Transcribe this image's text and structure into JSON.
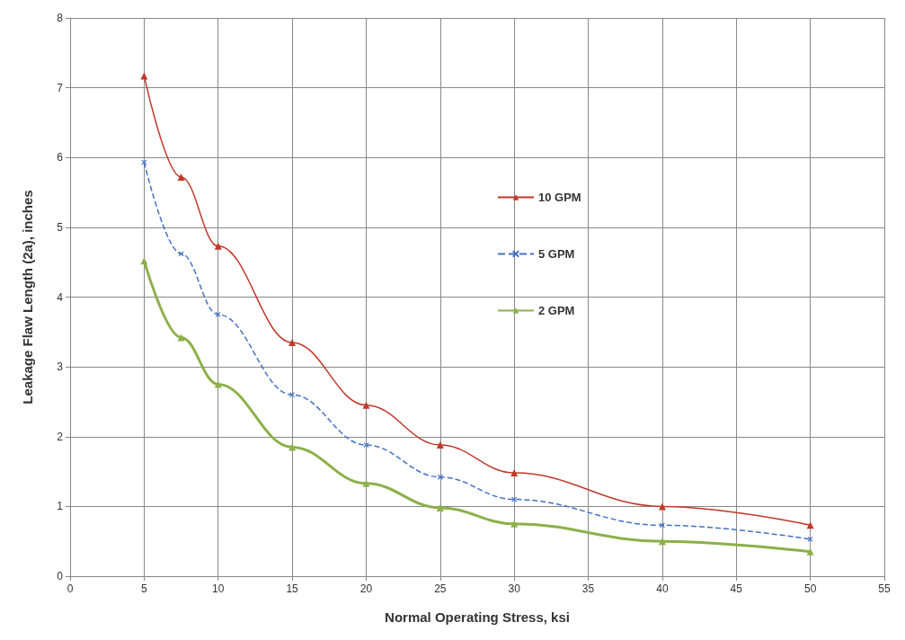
{
  "chart_data": {
    "type": "line",
    "xlabel": "Normal Operating Stress, ksi",
    "ylabel": "Leakage Flaw Length (2a), inches",
    "x": [
      5,
      7.5,
      10,
      15,
      20,
      25,
      30,
      40,
      50
    ],
    "series": [
      {
        "name": "10 GPM",
        "color": "#c0392b",
        "marker": "triangle",
        "line_style": "solid",
        "values": [
          7.17,
          5.72,
          4.73,
          3.35,
          2.45,
          1.88,
          1.48,
          1.0,
          0.73
        ]
      },
      {
        "name": "5 GPM",
        "color": "#4472c4",
        "marker": "cross",
        "line_style": "dashed",
        "values": [
          5.93,
          4.62,
          3.75,
          2.6,
          1.88,
          1.42,
          1.1,
          0.73,
          0.53
        ]
      },
      {
        "name": "2 GPM",
        "color": "#8db04a",
        "marker": "triangle",
        "line_style": "solid",
        "values": [
          4.52,
          3.42,
          2.75,
          1.85,
          1.33,
          0.98,
          0.75,
          0.5,
          0.35
        ]
      }
    ],
    "xlim": [
      0,
      55
    ],
    "xticks": [
      0,
      5,
      10,
      15,
      20,
      25,
      30,
      35,
      40,
      45,
      50,
      55
    ],
    "ylim": [
      0,
      8
    ],
    "yticks": [
      0,
      1,
      2,
      3,
      4,
      5,
      6,
      7,
      8
    ],
    "grid": true,
    "legend": "right"
  }
}
